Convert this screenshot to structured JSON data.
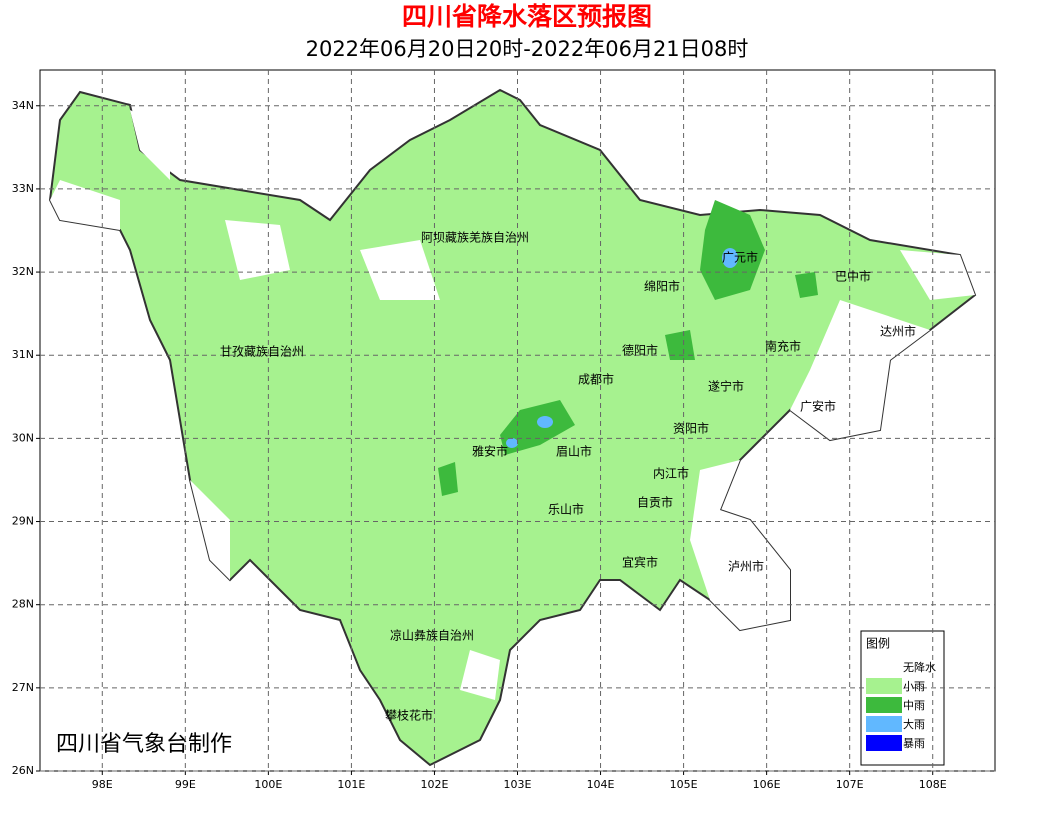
{
  "map": {
    "title": "四川省降水落区预报图",
    "subtitle": "2022年06月20日20时-2022年06月21日08时",
    "xlim": [
      97.25,
      108.75
    ],
    "ylim": [
      26,
      34.43
    ],
    "xticks": [
      {
        "value": 98,
        "label": "98E"
      },
      {
        "value": 99,
        "label": "99E"
      },
      {
        "value": 100,
        "label": "100E"
      },
      {
        "value": 101,
        "label": "101E"
      },
      {
        "value": 102,
        "label": "102E"
      },
      {
        "value": 103,
        "label": "103E"
      },
      {
        "value": 104,
        "label": "104E"
      },
      {
        "value": 105,
        "label": "105E"
      },
      {
        "value": 106,
        "label": "106E"
      },
      {
        "value": 107,
        "label": "107E"
      },
      {
        "value": 108,
        "label": "108E"
      }
    ],
    "yticks": [
      {
        "value": 26,
        "label": "26N"
      },
      {
        "value": 27,
        "label": "27N"
      },
      {
        "value": 28,
        "label": "28N"
      },
      {
        "value": 29,
        "label": "29N"
      },
      {
        "value": 30,
        "label": "30N"
      },
      {
        "value": 31,
        "label": "31N"
      },
      {
        "value": 32,
        "label": "32N"
      },
      {
        "value": 33,
        "label": "33N"
      },
      {
        "value": 34,
        "label": "34N"
      }
    ],
    "grid": true,
    "regions": [
      "阿坝藏族羌族自治州",
      "甘孜藏族自治州",
      "广元市",
      "巴中市",
      "绵阳市",
      "德阳市",
      "南充市",
      "达州市",
      "成都市",
      "遂宁市",
      "广安市",
      "资阳市",
      "雅安市",
      "眉山市",
      "内江市",
      "自贡市",
      "乐山市",
      "宜宾市",
      "泸州市",
      "凉山彝族自治州",
      "攀枝花市"
    ],
    "legend": {
      "title": "图例",
      "items": [
        {
          "name": "无降水",
          "color": "#ffffff"
        },
        {
          "name": "小雨",
          "color": "#a6f28f"
        },
        {
          "name": "中雨",
          "color": "#3dba3d"
        },
        {
          "name": "大雨",
          "color": "#61b8ff"
        },
        {
          "name": "暴雨",
          "color": "#0000fe"
        }
      ]
    },
    "credit": "四川省气象台制作"
  }
}
